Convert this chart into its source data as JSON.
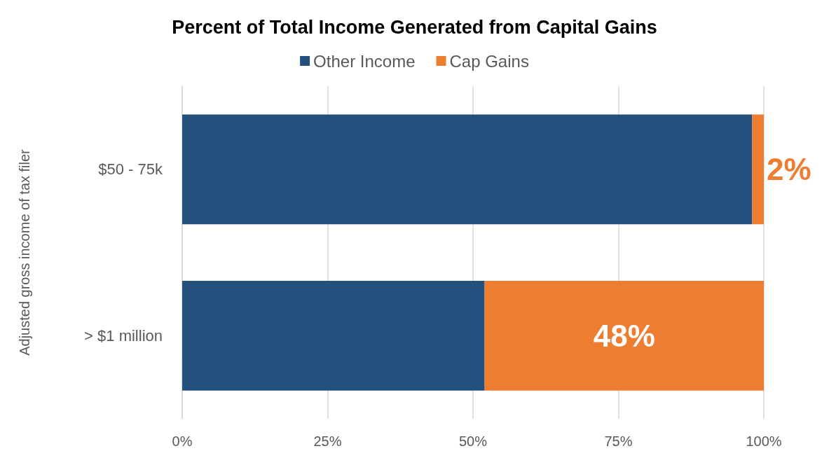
{
  "chart_data": {
    "type": "bar",
    "orientation": "horizontal",
    "stacked": true,
    "title": "Percent of Total Income Generated from Capital Gains",
    "ylabel": "Adjusted gross income of tax filer",
    "categories": [
      "$50 - 75k",
      "> $1 million"
    ],
    "series": [
      {
        "name": "Other Income",
        "color": "#23507d",
        "values": [
          98,
          52
        ]
      },
      {
        "name": "Cap Gains",
        "color": "#ed7d31",
        "values": [
          2,
          48
        ],
        "value_labels": [
          "2%",
          "48%"
        ]
      }
    ],
    "xlim": [
      0,
      100
    ],
    "xticks": [
      {
        "value": 0,
        "label": "0%"
      },
      {
        "value": 25,
        "label": "25%"
      },
      {
        "value": 50,
        "label": "50%"
      },
      {
        "value": 75,
        "label": "75%"
      },
      {
        "value": 100,
        "label": "100%"
      }
    ],
    "grid": "x",
    "legend": "top"
  }
}
